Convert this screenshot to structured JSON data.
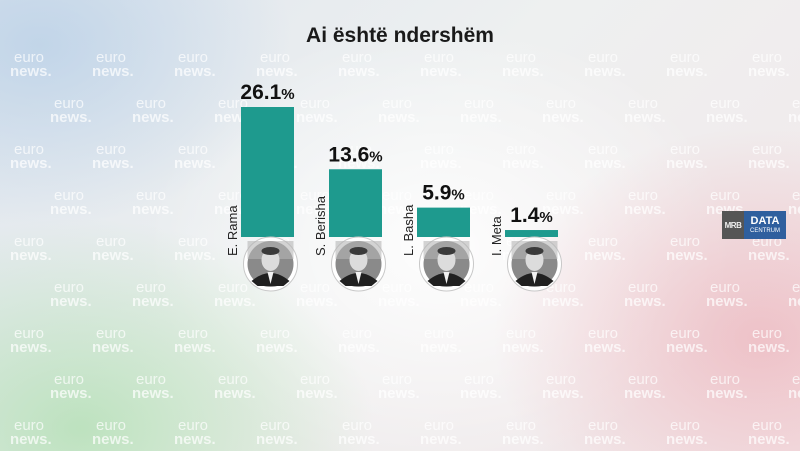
{
  "chart_data": {
    "type": "bar",
    "title": "Ai është ndershëm",
    "categories": [
      "E. Rama",
      "S. Berisha",
      "L. Basha",
      "I. Meta"
    ],
    "values": [
      26.1,
      13.6,
      5.9,
      1.4
    ],
    "value_labels": [
      "26.1",
      "13.6",
      "5.9",
      "1.4"
    ],
    "unit": "%",
    "xlabel": "",
    "ylabel": "",
    "ylim": [
      0,
      26.1
    ],
    "grid": false,
    "bar_color": "#1e9a8e"
  },
  "watermark": {
    "line1": "euro",
    "line2": "news."
  },
  "logo": {
    "left": "MRB",
    "right_main": "DATA",
    "right_sub": "CENTRUM"
  }
}
